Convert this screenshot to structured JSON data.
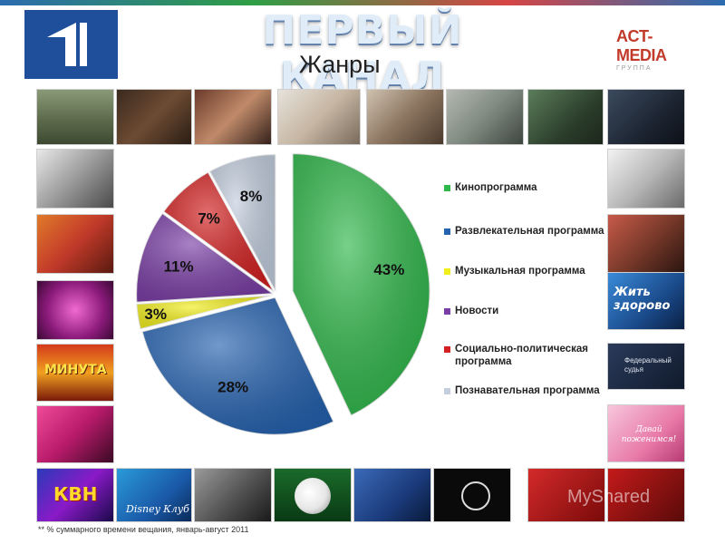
{
  "header": {
    "title": "ПЕРВЫЙ КАНАЛ",
    "subtitle": "Жанры",
    "partner_logo_main": "ACT-MEDIA",
    "partner_logo_sub": "ГРУППА"
  },
  "footnote": "** % суммарного времени вещания, январь-август 2011",
  "watermark": "MyShared",
  "thumbnails": {
    "zhit_zdorovo": "Жить здорово",
    "federal_judge": "Федеральный судья",
    "minuta": "МИНУТА",
    "disney": "Disney Клуб",
    "kvn": "КВН",
    "davai_pozhenimsya": "Давай поженимся!"
  },
  "colors": {
    "kino": "#2fb84a",
    "razvl": "#2562b0",
    "music": "#f2ee1a",
    "news": "#7a3ea6",
    "social": "#d42020",
    "pozn": "#c3cedf"
  },
  "chart_data": {
    "type": "pie",
    "title": "Жанры",
    "series": [
      {
        "name": "Кинопрограмма",
        "value": 43,
        "label": "43%",
        "color": "#2fb84a",
        "exploded": true
      },
      {
        "name": "Развлекательная программа",
        "value": 28,
        "label": "28%",
        "color": "#2562b0",
        "exploded": false
      },
      {
        "name": "Музыкальная программа",
        "value": 3,
        "label": "3%",
        "color": "#f2ee1a",
        "exploded": false
      },
      {
        "name": "Новости",
        "value": 11,
        "label": "11%",
        "color": "#7a3ea6",
        "exploded": false
      },
      {
        "name": "Социально-политическая программа",
        "value": 7,
        "label": "7%",
        "color": "#d42020",
        "exploded": false
      },
      {
        "name": "Познавательная программа",
        "value": 8,
        "label": "8%",
        "color": "#c3cedf",
        "exploded": false
      }
    ],
    "legend_position": "right"
  }
}
